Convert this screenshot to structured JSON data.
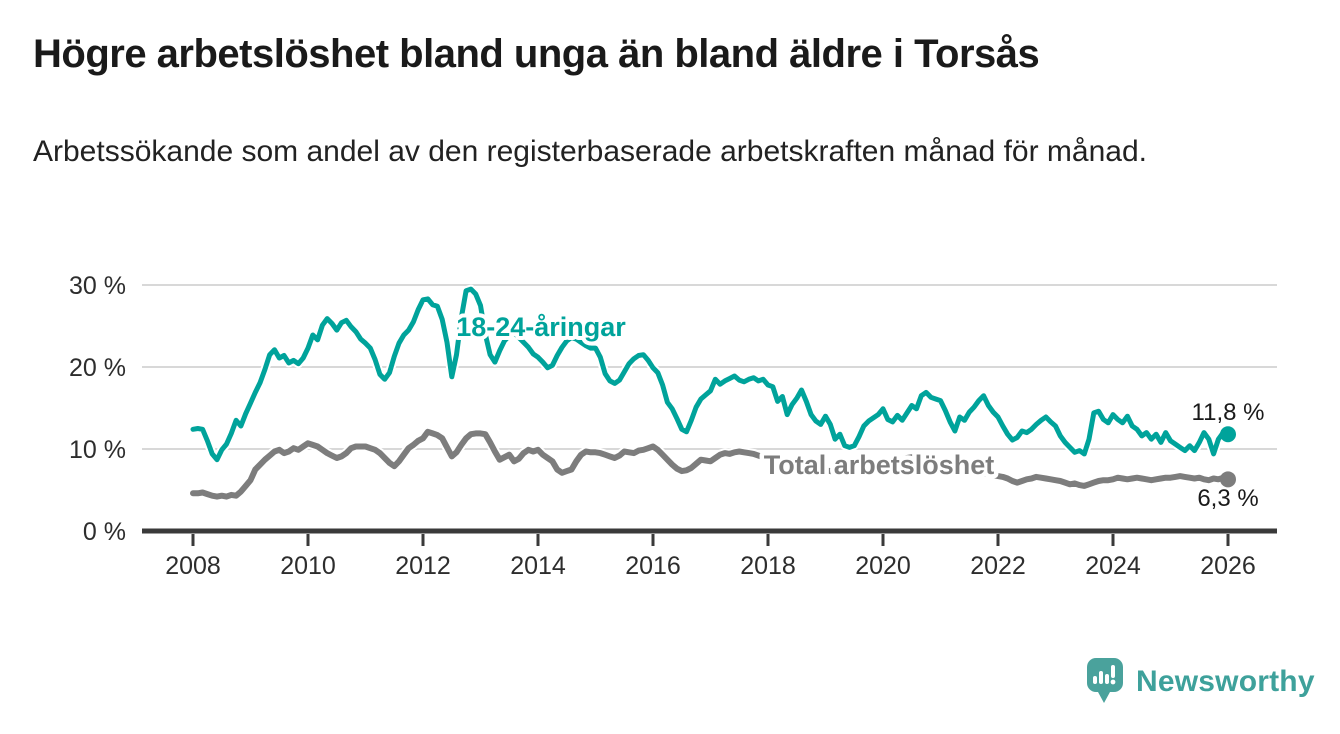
{
  "header": {
    "title": "Högre arbetslöshet bland unga än bland äldre i Torsås",
    "subtitle": "Arbetssökande som andel av den registerbaserade arbetskraften månad för månad."
  },
  "chart_data": {
    "type": "line",
    "unit": "%",
    "frequency": "monthly",
    "x_start": "2008-01",
    "x_end": "2026-01",
    "ylim": [
      0,
      30
    ],
    "grid": "horizontal",
    "y_ticks": [
      {
        "label": "0 %",
        "value": 0
      },
      {
        "label": "10 %",
        "value": 10
      },
      {
        "label": "20 %",
        "value": 20
      },
      {
        "label": "30 %",
        "value": 30
      }
    ],
    "x_ticks": [
      {
        "label": "2008",
        "year": 2008
      },
      {
        "label": "2010",
        "year": 2010
      },
      {
        "label": "2012",
        "year": 2012
      },
      {
        "label": "2014",
        "year": 2014
      },
      {
        "label": "2016",
        "year": 2016
      },
      {
        "label": "2018",
        "year": 2018
      },
      {
        "label": "2020",
        "year": 2020
      },
      {
        "label": "2022",
        "year": 2022
      },
      {
        "label": "2024",
        "year": 2024
      },
      {
        "label": "2026",
        "year": 2026
      }
    ],
    "series": [
      {
        "name": "18-24-åringar",
        "label": "18-24-åringar",
        "end_label": "11,8 %",
        "end_value": 11.8,
        "color": "#00a39b",
        "stroke_width": 5,
        "values": [
          12.4,
          12.5,
          12.4,
          11.0,
          9.4,
          8.7,
          9.9,
          10.6,
          11.9,
          13.5,
          12.8,
          14.3,
          15.6,
          16.9,
          18.1,
          19.7,
          21.5,
          22.1,
          21.1,
          21.4,
          20.5,
          20.8,
          20.4,
          21.1,
          22.3,
          23.9,
          23.3,
          25.1,
          25.9,
          25.3,
          24.5,
          25.4,
          25.7,
          24.9,
          24.3,
          23.4,
          22.9,
          22.3,
          20.9,
          19.1,
          18.5,
          19.3,
          21.3,
          22.9,
          23.9,
          24.5,
          25.5,
          27.0,
          28.2,
          28.3,
          27.6,
          27.4,
          25.8,
          23.0,
          18.8,
          21.5,
          26.0,
          29.3,
          29.5,
          28.9,
          27.5,
          24.0,
          21.5,
          20.6,
          22.0,
          23.2,
          23.8,
          24.2,
          23.6,
          23.0,
          22.4,
          21.6,
          21.2,
          20.6,
          19.9,
          20.2,
          21.4,
          22.4,
          23.2,
          23.6,
          23.4,
          23.0,
          22.6,
          22.3,
          22.3,
          21.2,
          19.2,
          18.3,
          18.0,
          18.4,
          19.4,
          20.4,
          21.0,
          21.4,
          21.5,
          20.8,
          19.9,
          19.3,
          17.8,
          15.7,
          14.9,
          13.7,
          12.4,
          12.1,
          13.5,
          15.1,
          16.1,
          16.6,
          17.1,
          18.5,
          17.9,
          18.3,
          18.6,
          18.9,
          18.4,
          18.2,
          18.5,
          18.7,
          18.3,
          18.5,
          17.8,
          17.6,
          15.8,
          16.4,
          14.2,
          15.4,
          16.2,
          17.2,
          15.8,
          14.2,
          13.4,
          13.0,
          14.0,
          13.0,
          11.2,
          11.8,
          10.4,
          10.2,
          10.4,
          11.5,
          12.8,
          13.4,
          13.8,
          14.2,
          14.9,
          13.6,
          13.3,
          14.1,
          13.5,
          14.4,
          15.3,
          14.9,
          16.5,
          16.9,
          16.3,
          16.1,
          15.9,
          14.7,
          13.3,
          12.2,
          13.9,
          13.5,
          14.5,
          15.1,
          15.9,
          16.5,
          15.3,
          14.5,
          13.9,
          12.8,
          11.8,
          11.1,
          11.4,
          12.2,
          12.0,
          12.4,
          13.0,
          13.5,
          13.9,
          13.3,
          12.8,
          11.6,
          10.8,
          10.2,
          9.6,
          9.8,
          9.4,
          11.2,
          14.4,
          14.6,
          13.6,
          13.2,
          14.2,
          13.6,
          13.2,
          14.0,
          12.8,
          12.4,
          11.6,
          12.0,
          11.2,
          11.8,
          10.8,
          12.0,
          11.0,
          10.6,
          10.2,
          9.8,
          10.4,
          9.8,
          10.8,
          12.0,
          11.2,
          9.4,
          11.2,
          12.0,
          11.8
        ]
      },
      {
        "name": "Total arbetslöshet",
        "label": "Total arbetslöshet",
        "end_label": "6,3 %",
        "end_value": 6.3,
        "color": "#7d7d7d",
        "stroke_width": 6,
        "values": [
          4.6,
          4.6,
          4.7,
          4.5,
          4.3,
          4.2,
          4.3,
          4.2,
          4.4,
          4.3,
          4.8,
          5.5,
          6.2,
          7.5,
          8.1,
          8.7,
          9.2,
          9.7,
          9.9,
          9.5,
          9.7,
          10.1,
          9.9,
          10.3,
          10.7,
          10.5,
          10.3,
          9.9,
          9.5,
          9.2,
          8.9,
          9.1,
          9.5,
          10.1,
          10.3,
          10.3,
          10.3,
          10.1,
          9.9,
          9.5,
          8.9,
          8.3,
          7.9,
          8.5,
          9.3,
          10.1,
          10.5,
          11.0,
          11.3,
          12.1,
          11.9,
          11.7,
          11.3,
          10.2,
          9.1,
          9.6,
          10.5,
          11.3,
          11.8,
          11.9,
          11.9,
          11.8,
          10.8,
          9.7,
          8.7,
          9.0,
          9.3,
          8.5,
          8.8,
          9.5,
          9.9,
          9.7,
          9.9,
          9.3,
          8.9,
          8.5,
          7.5,
          7.1,
          7.3,
          7.5,
          8.5,
          9.3,
          9.7,
          9.6,
          9.6,
          9.5,
          9.3,
          9.1,
          8.9,
          9.2,
          9.7,
          9.6,
          9.5,
          9.8,
          9.9,
          10.1,
          10.3,
          9.9,
          9.3,
          8.7,
          8.1,
          7.6,
          7.3,
          7.4,
          7.7,
          8.2,
          8.7,
          8.6,
          8.5,
          8.9,
          9.3,
          9.5,
          9.4,
          9.6,
          9.7,
          9.6,
          9.5,
          9.4,
          9.2,
          9.0,
          8.9,
          8.7,
          8.5,
          8.3,
          8.1,
          8.0,
          7.9,
          7.8,
          7.7,
          7.6,
          7.5,
          7.5,
          7.4,
          7.3,
          7.2,
          7.1,
          7.0,
          7.0,
          7.1,
          7.2,
          7.3,
          7.4,
          7.5,
          7.6,
          7.7,
          7.8,
          8.0,
          8.4,
          8.7,
          8.9,
          9.0,
          8.9,
          8.8,
          8.7,
          8.6,
          8.5,
          8.4,
          8.3,
          8.1,
          7.9,
          7.7,
          7.5,
          7.3,
          7.2,
          7.1,
          7.0,
          6.9,
          6.8,
          6.7,
          6.6,
          6.4,
          6.1,
          5.9,
          6.1,
          6.3,
          6.4,
          6.6,
          6.5,
          6.4,
          6.3,
          6.2,
          6.1,
          5.9,
          5.7,
          5.8,
          5.6,
          5.5,
          5.7,
          5.9,
          6.1,
          6.2,
          6.2,
          6.3,
          6.5,
          6.4,
          6.3,
          6.4,
          6.5,
          6.4,
          6.3,
          6.2,
          6.3,
          6.4,
          6.5,
          6.5,
          6.6,
          6.7,
          6.6,
          6.5,
          6.4,
          6.5,
          6.3,
          6.2,
          6.4,
          6.3,
          6.5,
          6.3
        ]
      }
    ]
  },
  "footer": {
    "brand": "Newsworthy"
  }
}
